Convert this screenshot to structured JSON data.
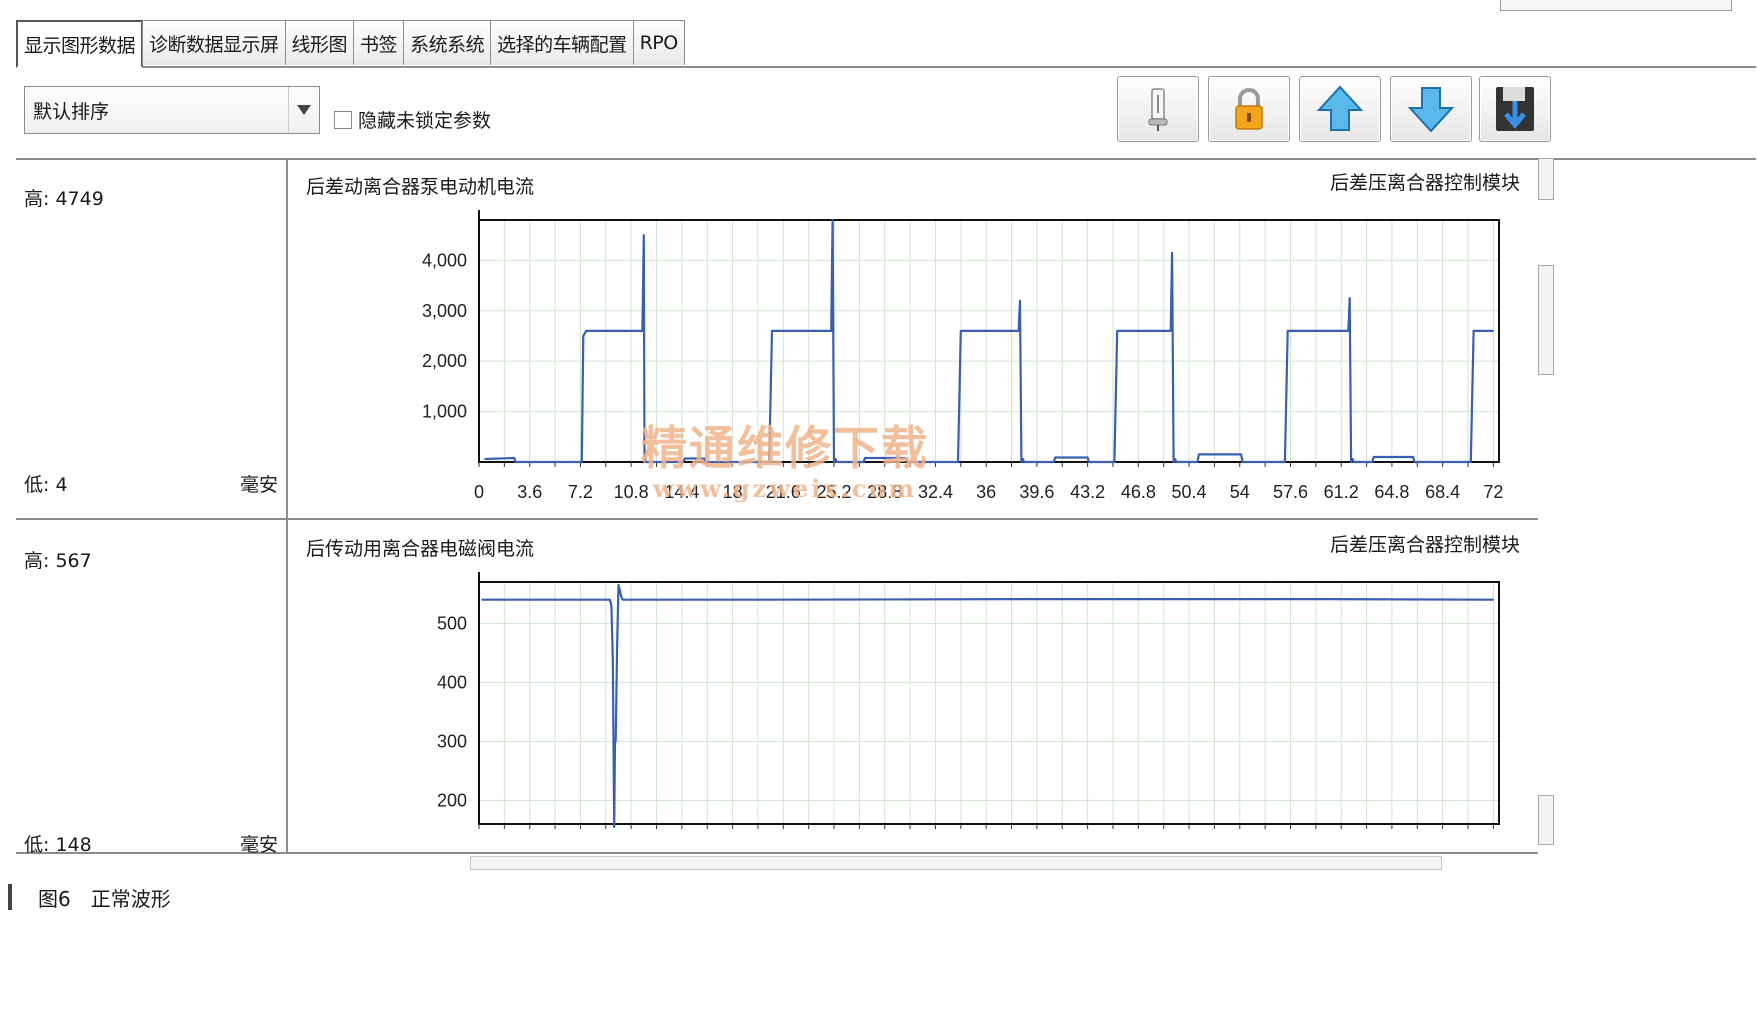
{
  "tabs": [
    {
      "label": "显示图形数据",
      "active": true
    },
    {
      "label": "诊断数据显示屏",
      "active": false
    },
    {
      "label": "线形图",
      "active": false
    },
    {
      "label": "书签",
      "active": false
    },
    {
      "label": "系统系统",
      "active": false
    },
    {
      "label": "选择的车辆配置",
      "active": false
    },
    {
      "label": "RPO",
      "active": false
    }
  ],
  "toolbar": {
    "sort_value": "默认排序",
    "hide_unlocked_label": "隐藏未锁定参数",
    "hide_unlocked_checked": false,
    "buttons": [
      "pin-icon",
      "lock-icon",
      "arrow-up-icon",
      "arrow-down-icon",
      "save-icon"
    ]
  },
  "panels": [
    {
      "high": "高: 4749",
      "low": "低: 4",
      "unit": "毫安",
      "title": "后差动离合器泵电动机电流",
      "module": "后差压离合器控制模块"
    },
    {
      "high": "高: 567",
      "low": "低: 148",
      "unit": "毫安",
      "title": "后传动用离合器电磁阀电流",
      "module": "后差压离合器控制模块"
    }
  ],
  "watermark": {
    "line1": "精通维修下载",
    "line2": "www.gzweix.com"
  },
  "caption": "图6　正常波形",
  "colors": {
    "line": "#3a5fae",
    "grid": "#cfe5cf",
    "watermark": "#f0b48c"
  },
  "chart_data": [
    {
      "type": "line",
      "title": "后差动离合器泵电动机电流",
      "module": "后差压离合器控制模块",
      "xticks": [
        "0",
        "3.6",
        "7.2",
        "10.8",
        "14.4",
        "18",
        "21.6",
        "25.2",
        "28.8",
        "32.4",
        "36",
        "39.6",
        "43.2",
        "46.8",
        "50.4",
        "54",
        "57.6",
        "61.2",
        "64.8",
        "68.4",
        "72"
      ],
      "yticks": [
        "1,000",
        "2,000",
        "3,000",
        "4,000"
      ],
      "xlim": [
        0,
        72.4
      ],
      "ylim": [
        0,
        4800
      ],
      "x": [
        0.4,
        2.5,
        2.6,
        7.3,
        7.4,
        7.6,
        11.6,
        11.7,
        11.75,
        11.8,
        11.85,
        12.5,
        14.5,
        14.6,
        16,
        16.1,
        20.6,
        20.8,
        25.0,
        25.1,
        25.2,
        25.3,
        25.4,
        27.3,
        27.4,
        30.3,
        30.4,
        34.0,
        34.2,
        38.3,
        38.4,
        38.5,
        38.6,
        38.7,
        40.8,
        40.9,
        43.2,
        43.3,
        45.1,
        45.3,
        49.1,
        49.2,
        49.3,
        49.4,
        49.5,
        51.0,
        51.1,
        54.1,
        54.2,
        57.2,
        57.4,
        61.7,
        61.8,
        61.9,
        62.0,
        62.1,
        63.4,
        63.5,
        66.3,
        66.4,
        70.4,
        70.6,
        72.0
      ],
      "y": [
        60,
        80,
        0,
        0,
        2500,
        2600,
        2600,
        4500,
        0,
        60,
        0,
        0,
        0,
        70,
        70,
        0,
        0,
        2600,
        2600,
        4800,
        0,
        60,
        0,
        0,
        80,
        80,
        0,
        0,
        2600,
        2600,
        3200,
        0,
        60,
        0,
        0,
        90,
        90,
        0,
        0,
        2600,
        2600,
        4150,
        0,
        60,
        0,
        0,
        150,
        150,
        0,
        0,
        2600,
        2600,
        3250,
        0,
        60,
        0,
        0,
        100,
        100,
        0,
        0,
        2600,
        2600
      ]
    },
    {
      "type": "line",
      "title": "后传动用离合器电磁阀电流",
      "module": "后差压离合器控制模块",
      "yticks": [
        "200",
        "300",
        "400",
        "500"
      ],
      "ylim": [
        160,
        570
      ],
      "xlim": [
        0,
        72.4
      ],
      "x": [
        0.2,
        9.3,
        9.4,
        9.5,
        9.55,
        9.6,
        9.65,
        9.7,
        9.8,
        9.9,
        10.0,
        10.1,
        10.2,
        20,
        40,
        60,
        72.0
      ],
      "y": [
        540,
        540,
        530,
        440,
        300,
        155,
        300,
        300,
        460,
        565,
        555,
        545,
        540,
        540,
        541,
        541,
        540
      ]
    }
  ]
}
